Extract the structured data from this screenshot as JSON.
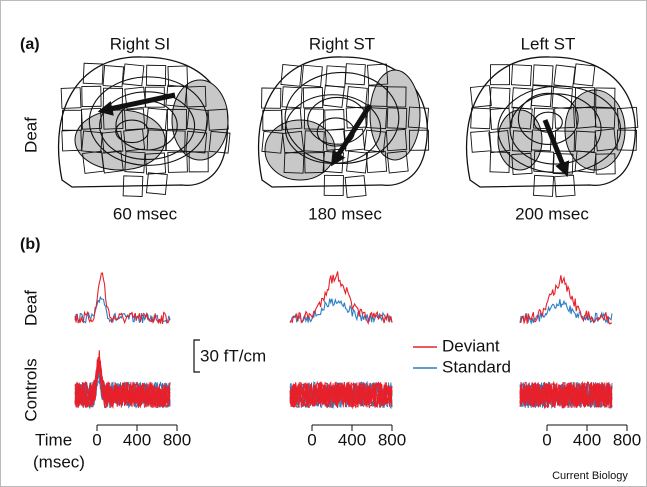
{
  "figure": {
    "panel_a": {
      "label": "(a)",
      "columns": [
        "Right SI",
        "Right ST",
        "Left ST"
      ],
      "row_label": "Deaf",
      "latencies": [
        "60 msec",
        "180 msec",
        "200 msec"
      ]
    },
    "panel_b": {
      "label": "(b)",
      "row_labels": [
        "Deaf",
        "Controls"
      ],
      "scale_bar": "30 fT/cm",
      "legend": [
        "Deviant",
        "Standard"
      ],
      "axis_title": "Time",
      "axis_unit": "(msec)",
      "ticks": [
        "0",
        "400",
        "800"
      ]
    },
    "credit": "Current Biology"
  }
}
